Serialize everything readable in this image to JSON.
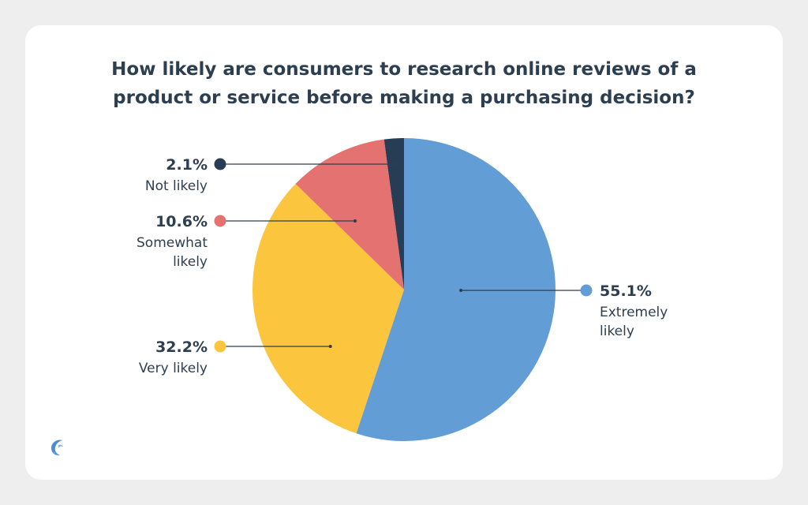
{
  "chart_data": {
    "type": "pie",
    "title_lines": [
      "How likely are consumers to research online reviews of a",
      "product or service before making a purchasing decision?"
    ],
    "slices": [
      {
        "value": 55.1,
        "label": "55.1%",
        "category_lines": [
          "Extremely",
          "likely"
        ],
        "color": "#639dd5"
      },
      {
        "value": 32.2,
        "label": "32.2%",
        "category_lines": [
          "Very likely"
        ],
        "color": "#fbc53e"
      },
      {
        "value": 10.6,
        "label": "10.6%",
        "category_lines": [
          "Somewhat",
          "likely"
        ],
        "color": "#e37271"
      },
      {
        "value": 2.1,
        "label": "2.1%",
        "category_lines": [
          "Not likely"
        ],
        "color": "#263d55"
      }
    ],
    "start_angle": "top",
    "direction": "clockwise"
  },
  "logo": {
    "icon": "wave-logo-icon",
    "color": "#4a8ed0"
  }
}
